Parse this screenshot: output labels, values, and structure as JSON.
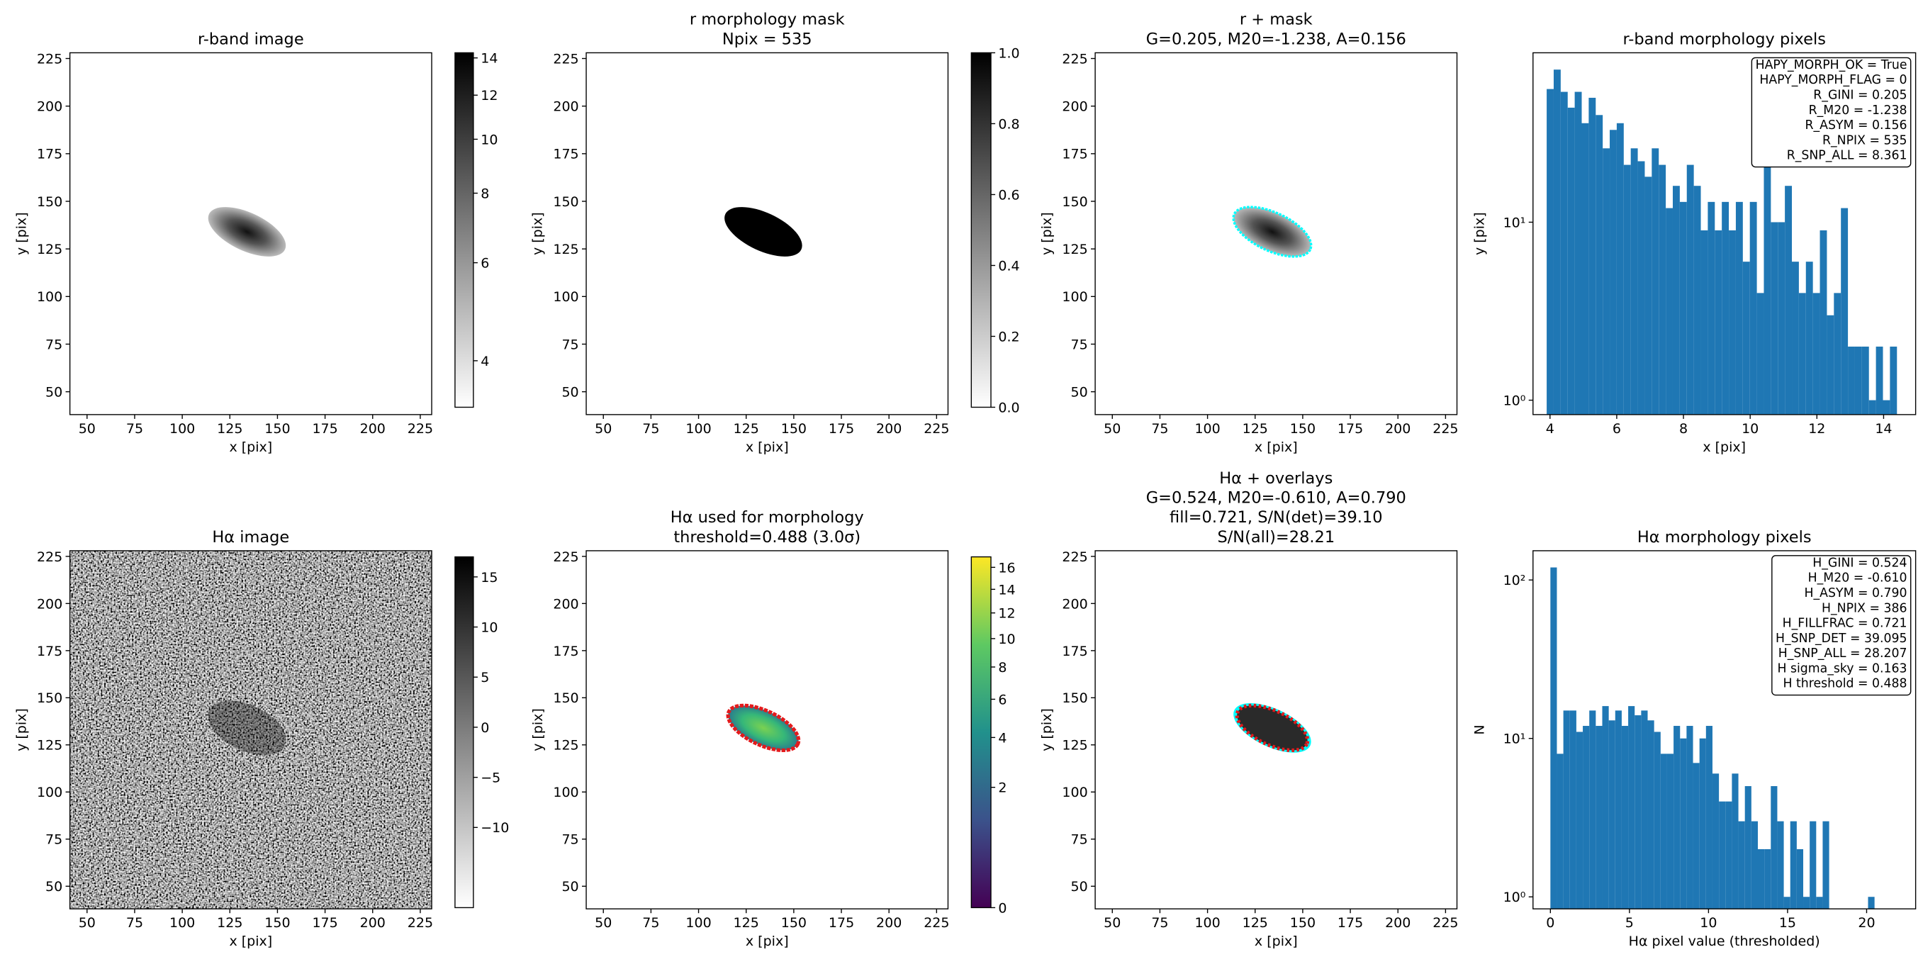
{
  "chart_data": [
    {
      "type": "image",
      "title": [
        "r-band image"
      ],
      "xlabel": "x [pix]",
      "ylabel": "y [pix]",
      "xlim": [
        41,
        231
      ],
      "ylim": [
        38,
        228
      ],
      "xticks": [
        50,
        75,
        100,
        125,
        150,
        175,
        200,
        225
      ],
      "yticks": [
        50,
        75,
        100,
        125,
        150,
        175,
        200,
        225
      ],
      "colorbar": {
        "cmap": "gray_r",
        "scale": "log",
        "clim": [
          3.3,
          14.3
        ],
        "ticks": [
          4,
          6,
          8,
          10,
          12,
          14
        ]
      }
    },
    {
      "type": "image",
      "title": [
        "r morphology mask",
        "Npix = 535"
      ],
      "xlabel": "x [pix]",
      "ylabel": "y [pix]",
      "xlim": [
        41,
        231
      ],
      "ylim": [
        38,
        228
      ],
      "xticks": [
        50,
        75,
        100,
        125,
        150,
        175,
        200,
        225
      ],
      "yticks": [
        50,
        75,
        100,
        125,
        150,
        175,
        200,
        225
      ],
      "colorbar": {
        "cmap": "gray_r",
        "scale": "linear",
        "clim": [
          0,
          1
        ],
        "ticks": [
          {
            "value": 0,
            "label": "0.0"
          },
          0.2,
          0.4,
          0.6,
          0.8,
          {
            "value": 1,
            "label": "1.0"
          }
        ]
      }
    },
    {
      "type": "image",
      "title": [
        "r + mask",
        "G=0.205, M20=-1.238, A=0.156"
      ],
      "xlabel": "x [pix]",
      "ylabel": "y [pix]",
      "xlim": [
        41,
        231
      ],
      "ylim": [
        38,
        228
      ],
      "xticks": [
        50,
        75,
        100,
        125,
        150,
        175,
        200,
        225
      ],
      "yticks": [
        50,
        75,
        100,
        125,
        150,
        175,
        200,
        225
      ]
    },
    {
      "type": "histogram",
      "title": [
        "r-band morphology pixels"
      ],
      "xlabel": "x [pix]",
      "ylabel": "y [pix]",
      "color": "#1f77b4",
      "log_y": true,
      "xlim": [
        3.49,
        14.96
      ],
      "ylim": [
        0.83,
        89.5
      ],
      "xticks": [
        4,
        6,
        8,
        10,
        12,
        14
      ],
      "yticks": [
        {
          "value": 1,
          "label": "10⁰"
        },
        {
          "value": 10,
          "label": "10¹"
        }
      ],
      "bins": [
        3.9,
        4.11,
        4.32,
        4.53,
        4.74,
        4.95,
        5.16,
        5.37,
        5.58,
        5.79,
        6.0,
        6.21,
        6.42,
        6.63,
        6.84,
        7.05,
        7.26,
        7.47,
        7.68,
        7.89,
        8.1,
        8.31,
        8.52,
        8.73,
        8.94,
        9.15,
        9.36,
        9.57,
        9.78,
        9.99,
        10.2,
        10.41,
        10.62,
        10.83,
        11.04,
        11.25,
        11.46,
        11.67,
        11.88,
        12.09,
        12.3,
        12.51,
        12.72,
        12.93,
        13.14,
        13.35,
        13.56,
        13.77,
        13.98,
        14.19,
        14.4
      ],
      "values": [
        56,
        72,
        54,
        44,
        54,
        36,
        50,
        40,
        26,
        33,
        36,
        21,
        26,
        22,
        18,
        26,
        21,
        12,
        16,
        13,
        21,
        16,
        9,
        13,
        9,
        13,
        9,
        13,
        6,
        13,
        4,
        21,
        10,
        10,
        16,
        6,
        4,
        6,
        4,
        9,
        3,
        4,
        12,
        2,
        2,
        2,
        1,
        2,
        1,
        2
      ],
      "annotation_loc": "upper right",
      "annotation": [
        "HAPY_MORPH_OK = True",
        "HAPY_MORPH_FLAG = 0",
        "R_GINI = 0.205",
        "R_M20 = -1.238",
        "R_ASYM = 0.156",
        "R_NPIX = 535",
        "R_SNP_ALL = 8.361"
      ]
    },
    {
      "type": "image",
      "title": [
        "Hα image"
      ],
      "xlabel": "x [pix]",
      "ylabel": "y [pix]",
      "xlim": [
        41,
        231
      ],
      "ylim": [
        38,
        228
      ],
      "xticks": [
        50,
        75,
        100,
        125,
        150,
        175,
        200,
        225
      ],
      "yticks": [
        50,
        75,
        100,
        125,
        150,
        175,
        200,
        225
      ],
      "colorbar": {
        "cmap": "gray_r",
        "scale": "linear",
        "clim": [
          -18,
          17
        ],
        "ticks": [
          {
            "value": -10,
            "label": "−10"
          },
          {
            "value": -5,
            "label": "−5"
          },
          0,
          5,
          10,
          15
        ]
      }
    },
    {
      "type": "image",
      "title": [
        "Hα used for morphology",
        "threshold=0.488 (3.0σ)"
      ],
      "xlabel": "x [pix]",
      "ylabel": "y [pix]",
      "xlim": [
        41,
        231
      ],
      "ylim": [
        38,
        228
      ],
      "xticks": [
        50,
        75,
        100,
        125,
        150,
        175,
        200,
        225
      ],
      "yticks": [
        50,
        75,
        100,
        125,
        150,
        175,
        200,
        225
      ],
      "colorbar": {
        "cmap": "viridis",
        "scale": "sqrt",
        "clim": [
          0,
          17
        ],
        "ticks": [
          0,
          2,
          4,
          6,
          8,
          10,
          12,
          14,
          16
        ]
      }
    },
    {
      "type": "image",
      "title": [
        "Hα + overlays",
        "G=0.524, M20=-0.610, A=0.790",
        "fill=0.721, S/N(det)=39.10",
        "S/N(all)=28.21"
      ],
      "xlabel": "x [pix]",
      "ylabel": "y [pix]",
      "xlim": [
        41,
        231
      ],
      "ylim": [
        38,
        228
      ],
      "xticks": [
        50,
        75,
        100,
        125,
        150,
        175,
        200,
        225
      ],
      "yticks": [
        50,
        75,
        100,
        125,
        150,
        175,
        200,
        225
      ]
    },
    {
      "type": "histogram",
      "title": [
        "Hα morphology pixels"
      ],
      "xlabel": "Hα pixel value (thresholded)",
      "ylabel": "N",
      "color": "#1f77b4",
      "log_y": true,
      "xlim": [
        -1.1,
        23.1
      ],
      "ylim": [
        0.84,
        153
      ],
      "xticks": [
        0,
        5,
        10,
        15,
        20
      ],
      "yticks": [
        {
          "value": 1,
          "label": "10⁰"
        },
        {
          "value": 10,
          "label": "10¹"
        },
        {
          "value": 100,
          "label": "10²"
        }
      ],
      "bins": [
        0,
        0.41,
        0.82,
        1.23,
        1.64,
        2.05,
        2.46,
        2.87,
        3.28,
        3.69,
        4.1,
        4.51,
        4.92,
        5.33,
        5.74,
        6.15,
        6.56,
        6.97,
        7.38,
        7.79,
        8.2,
        8.61,
        9.02,
        9.43,
        9.84,
        10.25,
        10.66,
        11.07,
        11.48,
        11.89,
        12.3,
        12.71,
        13.12,
        13.53,
        13.94,
        14.35,
        14.76,
        15.17,
        15.58,
        15.99,
        16.4,
        16.81,
        17.22,
        17.63,
        18.04,
        18.45,
        18.86,
        19.27,
        19.68,
        20.09,
        20.5
      ],
      "values": [
        120,
        8,
        15,
        15,
        11,
        12,
        15,
        12,
        16,
        13,
        15,
        12,
        16,
        14,
        15,
        13,
        11,
        8,
        8,
        12,
        10,
        12,
        7,
        10,
        12,
        6,
        4,
        4,
        6,
        3,
        5,
        3,
        2,
        2,
        5,
        3,
        1,
        3,
        2,
        1,
        3,
        1,
        3,
        0,
        0,
        0,
        0,
        0,
        0,
        1
      ],
      "annotation_loc": "upper right",
      "annotation": [
        "H_GINI = 0.524",
        "H_M20 = -0.610",
        "H_ASYM = 0.790",
        "H_NPIX = 386",
        "H_FILLFRAC = 0.721",
        "H_SNP_DET = 39.095",
        "H_SNP_ALL = 28.207",
        "H sigma_sky = 0.163",
        "H threshold = 0.488"
      ]
    }
  ]
}
